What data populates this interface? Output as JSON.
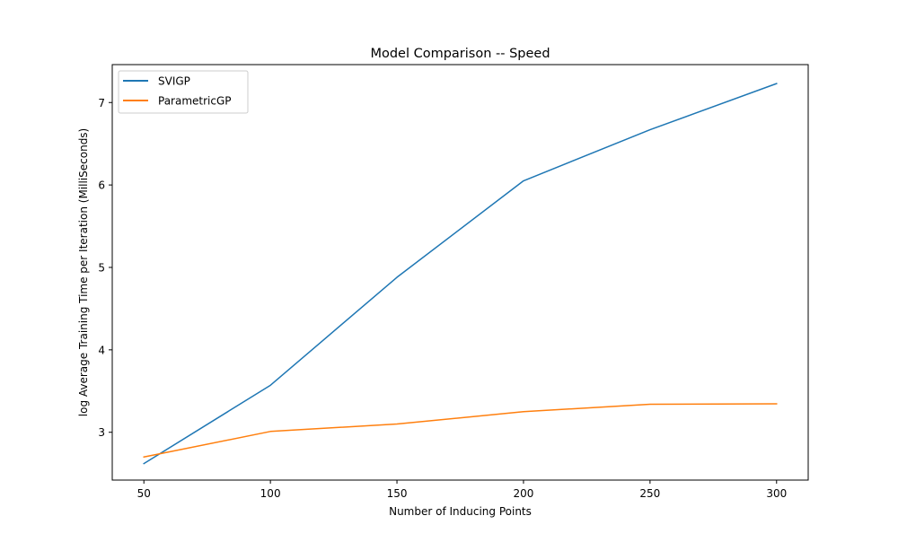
{
  "chart_data": {
    "type": "line",
    "title": "Model Comparison -- Speed",
    "xlabel": "Number of Inducing Points",
    "ylabel": "log Average Training Time per Iteration (MilliSeconds)",
    "x": [
      50,
      100,
      150,
      200,
      250,
      300
    ],
    "xlim": [
      37.5,
      312.5
    ],
    "ylim": [
      2.42,
      7.46
    ],
    "xticks": [
      50,
      100,
      150,
      200,
      250,
      300
    ],
    "yticks": [
      3,
      4,
      5,
      6,
      7
    ],
    "grid": false,
    "legend_position": "upper left",
    "series": [
      {
        "name": "SVIGP",
        "color": "#1f77b4",
        "values": [
          2.62,
          3.57,
          4.88,
          6.05,
          6.67,
          7.23
        ]
      },
      {
        "name": "ParametricGP",
        "color": "#ff7f0e",
        "values": [
          2.7,
          3.01,
          3.1,
          3.25,
          3.34,
          3.345
        ]
      }
    ]
  }
}
